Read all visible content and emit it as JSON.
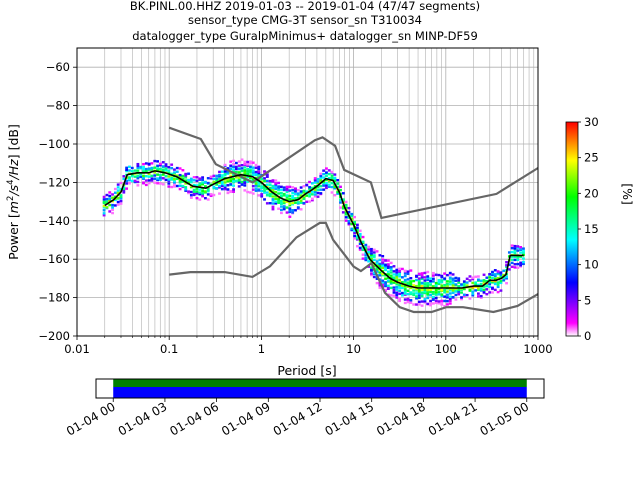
{
  "title_lines": [
    "BK.PINL.00.HHZ   2019-01-03 -- 2019-01-04  (47/47 segments)",
    "sensor_type CMG-3T sensor_sn T310034",
    "datalogger_type GuralpMinimus+ datalogger_sn MINP-DF59"
  ],
  "chart_data": [
    {
      "type": "heatmap",
      "xlabel": "Period [s]",
      "ylabel": "Power [m²/s⁴/Hz] [dB]",
      "ylabel_parts": [
        "Power [",
        "m",
        "2",
        "/s",
        "4",
        "/Hz",
        "] [dB]"
      ],
      "xscale": "log",
      "xlim": [
        0.01,
        1000
      ],
      "ylim": [
        -200,
        -50
      ],
      "grid": true,
      "x_ticks": [
        0.01,
        0.1,
        1,
        10,
        100,
        1000
      ],
      "x_tick_labels": [
        "0.01",
        "0.1",
        "1",
        "10",
        "100",
        "1000"
      ],
      "y_ticks": [
        -200,
        -180,
        -160,
        -140,
        -120,
        -100,
        -80,
        -60
      ],
      "y_tick_labels": [
        "−200",
        "−180",
        "−160",
        "−140",
        "−120",
        "−100",
        "−80",
        "−60"
      ],
      "colorbar": {
        "label": "[%]",
        "range": [
          0,
          30
        ],
        "ticks": [
          0,
          5,
          10,
          15,
          20,
          25,
          30
        ],
        "tick_labels": [
          "0",
          "5",
          "10",
          "15",
          "20",
          "25",
          "30"
        ],
        "colormap": [
          "#ffffff",
          "#ff00ff",
          "#0000ff",
          "#00ffff",
          "#00ff00",
          "#ffff00",
          "#ff0000"
        ]
      },
      "series": [
        {
          "role": "mean",
          "color": "#000000",
          "x": [
            0.02,
            0.025,
            0.03,
            0.035,
            0.045,
            0.06,
            0.07,
            0.09,
            0.12,
            0.18,
            0.25,
            0.3,
            0.4,
            0.6,
            0.8,
            1.0,
            1.3,
            1.6,
            2.0,
            2.5,
            3.0,
            3.5,
            4.0,
            4.5,
            5.0,
            6.0,
            7.0,
            8.0,
            10.0,
            12.0,
            15.0,
            20.0,
            25.0,
            30.0,
            40.0,
            50.0,
            70.0,
            100,
            150,
            200,
            250,
            300,
            350,
            400,
            450,
            500,
            600,
            700
          ],
          "y": [
            -132,
            -129,
            -125,
            -116,
            -115,
            -115,
            -114,
            -115,
            -117,
            -122,
            -123,
            -121,
            -118,
            -116,
            -117,
            -120,
            -125,
            -128,
            -130,
            -129,
            -126,
            -124,
            -122,
            -120,
            -118,
            -119,
            -125,
            -133,
            -142,
            -151,
            -160,
            -166,
            -170,
            -172,
            -174,
            -175,
            -175,
            -175,
            -175,
            -174,
            -174,
            -171,
            -171,
            -170,
            -168,
            -158,
            -158,
            -158
          ]
        }
      ],
      "noise_model_lines": [
        {
          "name": "upper",
          "color": "#666666",
          "x": [
            0.1,
            0.22,
            0.32,
            0.8,
            3.8,
            4.6,
            6.3,
            7.9,
            15.4,
            20.0,
            354.8,
            1000
          ],
          "y": [
            -91.5,
            -97.4,
            -110.5,
            -120.0,
            -98.0,
            -96.5,
            -101.0,
            -113.5,
            -120.0,
            -138.5,
            -126.0,
            -112.5
          ]
        },
        {
          "name": "lower",
          "color": "#666666",
          "x": [
            0.1,
            0.17,
            0.4,
            0.8,
            1.24,
            2.4,
            4.3,
            5.0,
            6.0,
            10.0,
            12.0,
            15.6,
            21.9,
            31.6,
            45.0,
            70.0,
            101.0,
            154.0,
            328.0,
            600.0,
            1000
          ],
          "y": [
            -168.0,
            -166.7,
            -166.7,
            -169.2,
            -163.7,
            -148.6,
            -141.1,
            -141.1,
            -149.9,
            -163.8,
            -166.2,
            -162.1,
            -177.5,
            -185.0,
            -187.5,
            -187.5,
            -185.0,
            -185.0,
            -187.5,
            -184.4,
            -178.2
          ]
        }
      ]
    },
    {
      "type": "bar",
      "orientation": "horizontal",
      "xlim": [
        "01-03 23:00",
        "01-05 01:00"
      ],
      "x_tick_labels": [
        "01-04 00",
        "01-04 03",
        "01-04 06",
        "01-04 09",
        "01-04 12",
        "01-04 15",
        "01-04 18",
        "01-04 21",
        "01-05 00"
      ],
      "series": [
        {
          "role": "data coverage",
          "color": "#0000ff",
          "start": "01-04 00:00",
          "end": "01-05 00:00"
        },
        {
          "role": "psd segment coverage",
          "color": "#008000",
          "start": "01-04 00:00",
          "end": "01-05 00:00"
        }
      ]
    }
  ]
}
